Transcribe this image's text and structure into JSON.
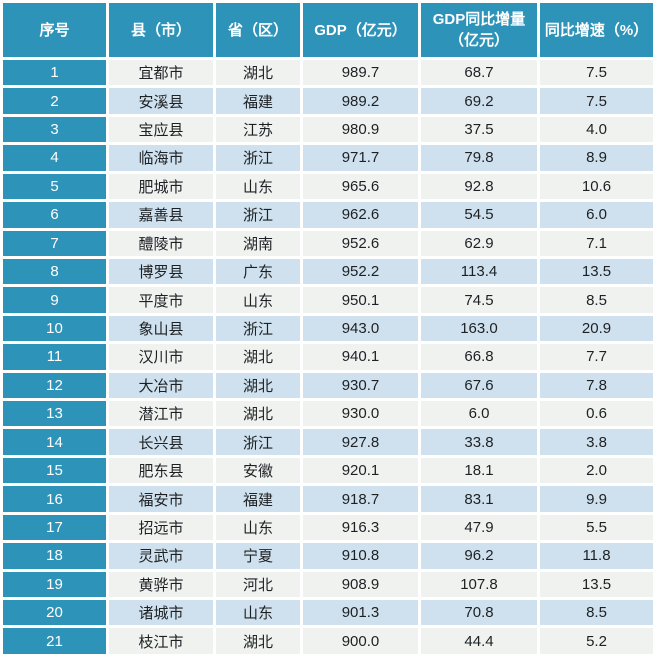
{
  "colors": {
    "teal": "#2e93b8",
    "row_light": "#f0f2f0",
    "row_blue": "#cfe1ee",
    "gap_white": "#ffffff",
    "header_text": "#ffffff",
    "body_text": "#1d2124"
  },
  "chart_data": {
    "type": "table",
    "title": "",
    "columns": [
      "序号",
      "县（市）",
      "省（区）",
      "GDP（亿元）",
      "GDP同比增量（亿元）",
      "同比增速（%）"
    ],
    "rows": [
      [
        "1",
        "宜都市",
        "湖北",
        "989.7",
        "68.7",
        "7.5"
      ],
      [
        "2",
        "安溪县",
        "福建",
        "989.2",
        "69.2",
        "7.5"
      ],
      [
        "3",
        "宝应县",
        "江苏",
        "980.9",
        "37.5",
        "4.0"
      ],
      [
        "4",
        "临海市",
        "浙江",
        "971.7",
        "79.8",
        "8.9"
      ],
      [
        "5",
        "肥城市",
        "山东",
        "965.6",
        "92.8",
        "10.6"
      ],
      [
        "6",
        "嘉善县",
        "浙江",
        "962.6",
        "54.5",
        "6.0"
      ],
      [
        "7",
        "醴陵市",
        "湖南",
        "952.6",
        "62.9",
        "7.1"
      ],
      [
        "8",
        "博罗县",
        "广东",
        "952.2",
        "113.4",
        "13.5"
      ],
      [
        "9",
        "平度市",
        "山东",
        "950.1",
        "74.5",
        "8.5"
      ],
      [
        "10",
        "象山县",
        "浙江",
        "943.0",
        "163.0",
        "20.9"
      ],
      [
        "11",
        "汉川市",
        "湖北",
        "940.1",
        "66.8",
        "7.7"
      ],
      [
        "12",
        "大冶市",
        "湖北",
        "930.7",
        "67.6",
        "7.8"
      ],
      [
        "13",
        "潜江市",
        "湖北",
        "930.0",
        "6.0",
        "0.6"
      ],
      [
        "14",
        "长兴县",
        "浙江",
        "927.8",
        "33.8",
        "3.8"
      ],
      [
        "15",
        "肥东县",
        "安徽",
        "920.1",
        "18.1",
        "2.0"
      ],
      [
        "16",
        "福安市",
        "福建",
        "918.7",
        "83.1",
        "9.9"
      ],
      [
        "17",
        "招远市",
        "山东",
        "916.3",
        "47.9",
        "5.5"
      ],
      [
        "18",
        "灵武市",
        "宁夏",
        "910.8",
        "96.2",
        "11.8"
      ],
      [
        "19",
        "黄骅市",
        "河北",
        "908.9",
        "107.8",
        "13.5"
      ],
      [
        "20",
        "诸城市",
        "山东",
        "901.3",
        "70.8",
        "8.5"
      ],
      [
        "21",
        "枝江市",
        "湖北",
        "900.0",
        "44.4",
        "5.2"
      ]
    ]
  }
}
